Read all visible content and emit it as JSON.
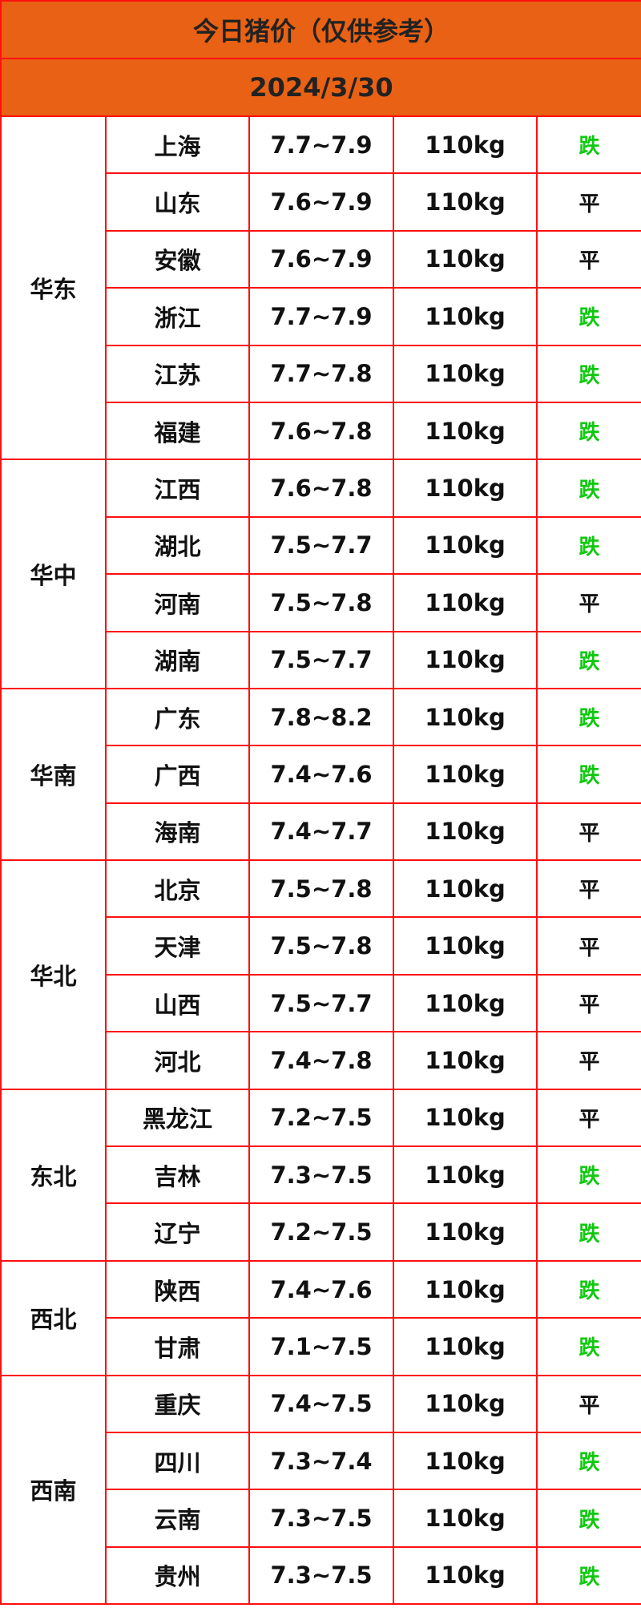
{
  "title": "今日猪价（仅供参考）",
  "date": "2024/3/30",
  "colors": {
    "header_bg": "#e96114",
    "border": "#ff1010",
    "down": "#10c810",
    "flat": "#111111"
  },
  "regions": [
    {
      "name": "华东",
      "rows": [
        [
          "上海",
          "7.7~7.9",
          "110kg",
          "跌"
        ],
        [
          "山东",
          "7.6~7.9",
          "110kg",
          "平"
        ],
        [
          "安徽",
          "7.6~7.9",
          "110kg",
          "平"
        ],
        [
          "浙江",
          "7.7~7.9",
          "110kg",
          "跌"
        ],
        [
          "江苏",
          "7.7~7.8",
          "110kg",
          "跌"
        ],
        [
          "福建",
          "7.6~7.8",
          "110kg",
          "跌"
        ]
      ]
    },
    {
      "name": "华中",
      "rows": [
        [
          "江西",
          "7.6~7.8",
          "110kg",
          "跌"
        ],
        [
          "湖北",
          "7.5~7.7",
          "110kg",
          "跌"
        ],
        [
          "河南",
          "7.5~7.8",
          "110kg",
          "平"
        ],
        [
          "湖南",
          "7.5~7.7",
          "110kg",
          "跌"
        ]
      ]
    },
    {
      "name": "华南",
      "rows": [
        [
          "广东",
          "7.8~8.2",
          "110kg",
          "跌"
        ],
        [
          "广西",
          "7.4~7.6",
          "110kg",
          "跌"
        ],
        [
          "海南",
          "7.4~7.7",
          "110kg",
          "平"
        ]
      ]
    },
    {
      "name": "华北",
      "rows": [
        [
          "北京",
          "7.5~7.8",
          "110kg",
          "平"
        ],
        [
          "天津",
          "7.5~7.8",
          "110kg",
          "平"
        ],
        [
          "山西",
          "7.5~7.7",
          "110kg",
          "平"
        ],
        [
          "河北",
          "7.4~7.8",
          "110kg",
          "平"
        ]
      ]
    },
    {
      "name": "东北",
      "rows": [
        [
          "黑龙江",
          "7.2~7.5",
          "110kg",
          "平"
        ],
        [
          "吉林",
          "7.3~7.5",
          "110kg",
          "跌"
        ],
        [
          "辽宁",
          "7.2~7.5",
          "110kg",
          "跌"
        ]
      ]
    },
    {
      "name": "西北",
      "rows": [
        [
          "陕西",
          "7.4~7.6",
          "110kg",
          "跌"
        ],
        [
          "甘肃",
          "7.1~7.5",
          "110kg",
          "跌"
        ]
      ]
    },
    {
      "name": "西南",
      "rows": [
        [
          "重庆",
          "7.4~7.5",
          "110kg",
          "平"
        ],
        [
          "四川",
          "7.3~7.4",
          "110kg",
          "跌"
        ],
        [
          "云南",
          "7.3~7.5",
          "110kg",
          "跌"
        ],
        [
          "贵州",
          "7.3~7.5",
          "110kg",
          "跌"
        ]
      ]
    }
  ]
}
